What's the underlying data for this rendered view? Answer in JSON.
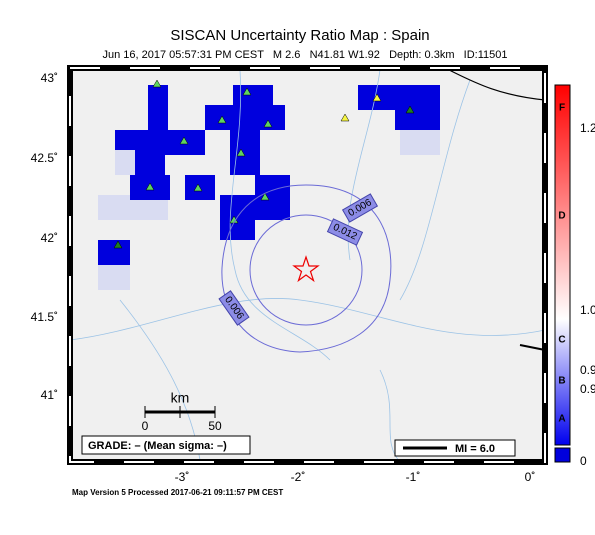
{
  "header": {
    "title": "SISCAN Uncertainty Ratio Map : Spain",
    "subtitle": "Jun 16, 2017 05:57:31 PM CEST   M 2.6   N41.81 W1.92   Depth: 0.3km   ID:11501"
  },
  "axes": {
    "lat_labels": [
      "43˚",
      "42.5˚",
      "42˚",
      "41.5˚",
      "41˚"
    ],
    "lon_labels": [
      "-3˚",
      "-2˚",
      "-1˚",
      "0˚"
    ]
  },
  "contours": [
    "0.006",
    "0.012",
    "0.006"
  ],
  "scale_bar": {
    "title": "km",
    "labels": [
      "0",
      "50"
    ]
  },
  "grade": "GRADE: – (Mean sigma: –)",
  "legend": {
    "mi": "MI = 6.0"
  },
  "colorbar": {
    "grades": [
      "F",
      "D",
      "C",
      "B",
      "A"
    ],
    "values": [
      "1.2",
      "1.0",
      "0.9",
      "0.9",
      "0"
    ]
  },
  "footer": "Map Version 5 Processed 2017-06-21 09:11:57 PM CEST"
}
